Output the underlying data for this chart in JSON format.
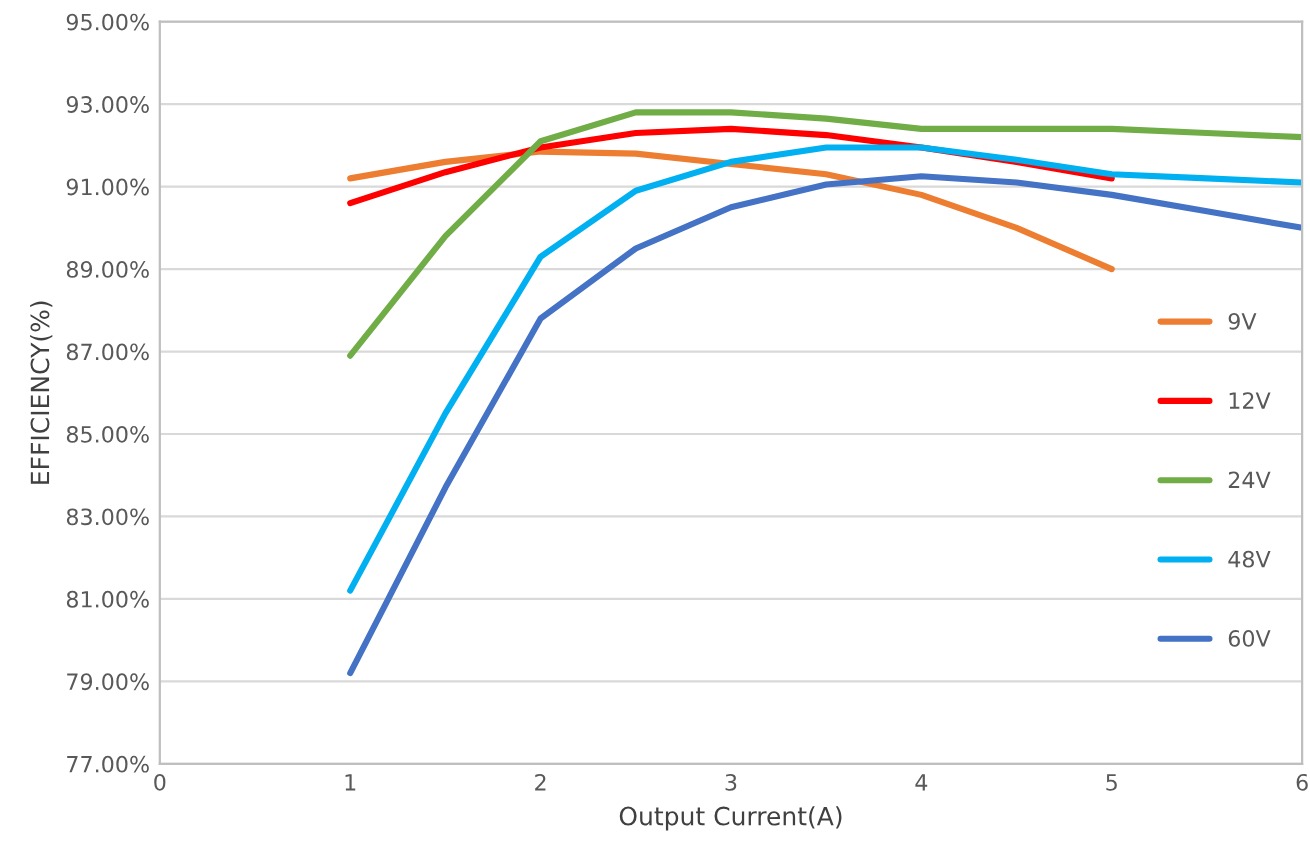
{
  "chart_data": {
    "type": "line",
    "xlabel": "Output Current(A)",
    "ylabel": "EFFICIENCY(%)",
    "xlim": [
      0,
      6
    ],
    "xticks": [
      0,
      1,
      2,
      3,
      4,
      5,
      6
    ],
    "ylim": [
      77,
      95
    ],
    "yticks": [
      {
        "value": 77,
        "label": "77.00%"
      },
      {
        "value": 79,
        "label": "79.00%"
      },
      {
        "value": 81,
        "label": "81.00%"
      },
      {
        "value": 83,
        "label": "83.00%"
      },
      {
        "value": 85,
        "label": "85.00%"
      },
      {
        "value": 87,
        "label": "87.00%"
      },
      {
        "value": 89,
        "label": "89.00%"
      },
      {
        "value": 91,
        "label": "91.00%"
      },
      {
        "value": 93,
        "label": "93.00%"
      },
      {
        "value": 95,
        "label": "95.00%"
      }
    ],
    "grid": "y",
    "legend": "right",
    "marker": "none",
    "line_style": "solid",
    "series": [
      {
        "name": "9V",
        "color": "#ed7d31",
        "x": [
          1,
          1.5,
          2,
          2.5,
          3,
          3.5,
          4,
          4.5,
          5
        ],
        "values": [
          91.2,
          91.6,
          91.85,
          91.8,
          91.55,
          91.3,
          90.8,
          90.0,
          89.0
        ]
      },
      {
        "name": "12V",
        "color": "#ff0000",
        "x": [
          1,
          1.5,
          2,
          2.5,
          3,
          3.5,
          4,
          4.5,
          5
        ],
        "values": [
          90.6,
          91.35,
          91.95,
          92.3,
          92.4,
          92.25,
          91.95,
          91.6,
          91.2
        ]
      },
      {
        "name": "24V",
        "color": "#70ad47",
        "x": [
          1,
          1.5,
          2,
          2.5,
          3,
          3.5,
          4,
          4.5,
          5,
          5.5,
          6
        ],
        "values": [
          86.9,
          89.8,
          92.1,
          92.8,
          92.8,
          92.65,
          92.4,
          92.4,
          92.4,
          92.3,
          92.2
        ]
      },
      {
        "name": "48V",
        "color": "#00b0f0",
        "x": [
          1,
          1.5,
          2,
          2.5,
          3,
          3.5,
          4,
          4.5,
          5,
          5.5,
          6
        ],
        "values": [
          81.2,
          85.5,
          89.3,
          90.9,
          91.6,
          91.95,
          91.95,
          91.65,
          91.3,
          91.2,
          91.1
        ]
      },
      {
        "name": "60V",
        "color": "#4472c4",
        "x": [
          1,
          1.5,
          2,
          2.5,
          3,
          3.5,
          4,
          4.5,
          5,
          5.5,
          6
        ],
        "values": [
          79.2,
          83.7,
          87.8,
          89.5,
          90.5,
          91.05,
          91.25,
          91.1,
          90.8,
          90.4,
          90.0
        ]
      }
    ]
  }
}
